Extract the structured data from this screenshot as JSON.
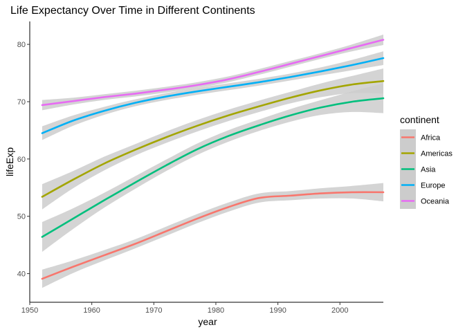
{
  "chart_data": {
    "type": "line",
    "title": "Life Expectancy Over Time in Different Continents",
    "xlabel": "year",
    "ylabel": "lifeExp",
    "xlim": [
      1950,
      2007
    ],
    "ylim": [
      35,
      84
    ],
    "x_ticks": [
      1950,
      1960,
      1970,
      1980,
      1990,
      2000
    ],
    "y_ticks": [
      40,
      50,
      60,
      70,
      80
    ],
    "x_tick_labels": [
      "1950",
      "1960",
      "1970",
      "1980",
      "1990",
      "2000"
    ],
    "y_tick_labels": [
      "40",
      "50",
      "60",
      "70",
      "80"
    ],
    "grid": false,
    "smoothing_band": true,
    "legend_position": "right",
    "legend_title": "continent",
    "band_color": "#cccccc",
    "series": [
      {
        "name": "Africa",
        "color": "#F8766D",
        "x": [
          1952,
          1957,
          1962,
          1967,
          1972,
          1977,
          1982,
          1987,
          1992,
          1997,
          2002,
          2007
        ],
        "y": [
          39.1,
          41.2,
          43.2,
          45.2,
          47.4,
          49.6,
          51.6,
          53.2,
          53.6,
          54.0,
          54.2,
          54.2
        ],
        "band_halfwidth": [
          1.6,
          1.1,
          0.9,
          0.8,
          0.8,
          0.8,
          0.8,
          0.8,
          0.8,
          0.9,
          1.1,
          1.6
        ]
      },
      {
        "name": "Americas",
        "color": "#A3A500",
        "x": [
          1952,
          1957,
          1962,
          1967,
          1972,
          1977,
          1982,
          1987,
          1992,
          1997,
          2002,
          2007
        ],
        "y": [
          53.4,
          56.4,
          59.2,
          61.6,
          63.8,
          65.8,
          67.6,
          69.2,
          70.7,
          72.0,
          73.0,
          73.6
        ],
        "band_halfwidth": [
          2.2,
          1.5,
          1.2,
          1.0,
          1.0,
          1.0,
          1.0,
          1.0,
          1.0,
          1.2,
          1.5,
          2.2
        ]
      },
      {
        "name": "Asia",
        "color": "#00BF7D",
        "x": [
          1952,
          1957,
          1962,
          1967,
          1972,
          1977,
          1982,
          1987,
          1992,
          1997,
          2002,
          2007
        ],
        "y": [
          46.4,
          49.6,
          52.8,
          55.9,
          58.9,
          61.7,
          64.0,
          65.9,
          67.6,
          69.0,
          70.0,
          70.6
        ],
        "band_halfwidth": [
          2.6,
          1.8,
          1.3,
          1.1,
          1.0,
          1.0,
          1.0,
          1.0,
          1.1,
          1.3,
          1.8,
          2.6
        ]
      },
      {
        "name": "Europe",
        "color": "#00B0F6",
        "x": [
          1952,
          1957,
          1962,
          1967,
          1972,
          1977,
          1982,
          1987,
          1992,
          1997,
          2002,
          2007
        ],
        "y": [
          64.5,
          66.7,
          68.4,
          69.8,
          70.9,
          71.8,
          72.6,
          73.4,
          74.3,
          75.3,
          76.4,
          77.6
        ],
        "band_halfwidth": [
          1.2,
          0.9,
          0.7,
          0.6,
          0.6,
          0.6,
          0.6,
          0.6,
          0.6,
          0.7,
          0.9,
          1.2
        ]
      },
      {
        "name": "Oceania",
        "color": "#E76BF3",
        "x": [
          1952,
          1957,
          1962,
          1967,
          1972,
          1977,
          1982,
          1987,
          1992,
          1997,
          2002,
          2007
        ],
        "y": [
          69.4,
          70.1,
          70.8,
          71.4,
          72.1,
          72.9,
          73.9,
          75.2,
          76.6,
          78.0,
          79.4,
          80.8
        ],
        "band_halfwidth": [
          0.9,
          0.6,
          0.5,
          0.5,
          0.5,
          0.5,
          0.5,
          0.5,
          0.5,
          0.5,
          0.6,
          0.9
        ]
      }
    ]
  }
}
